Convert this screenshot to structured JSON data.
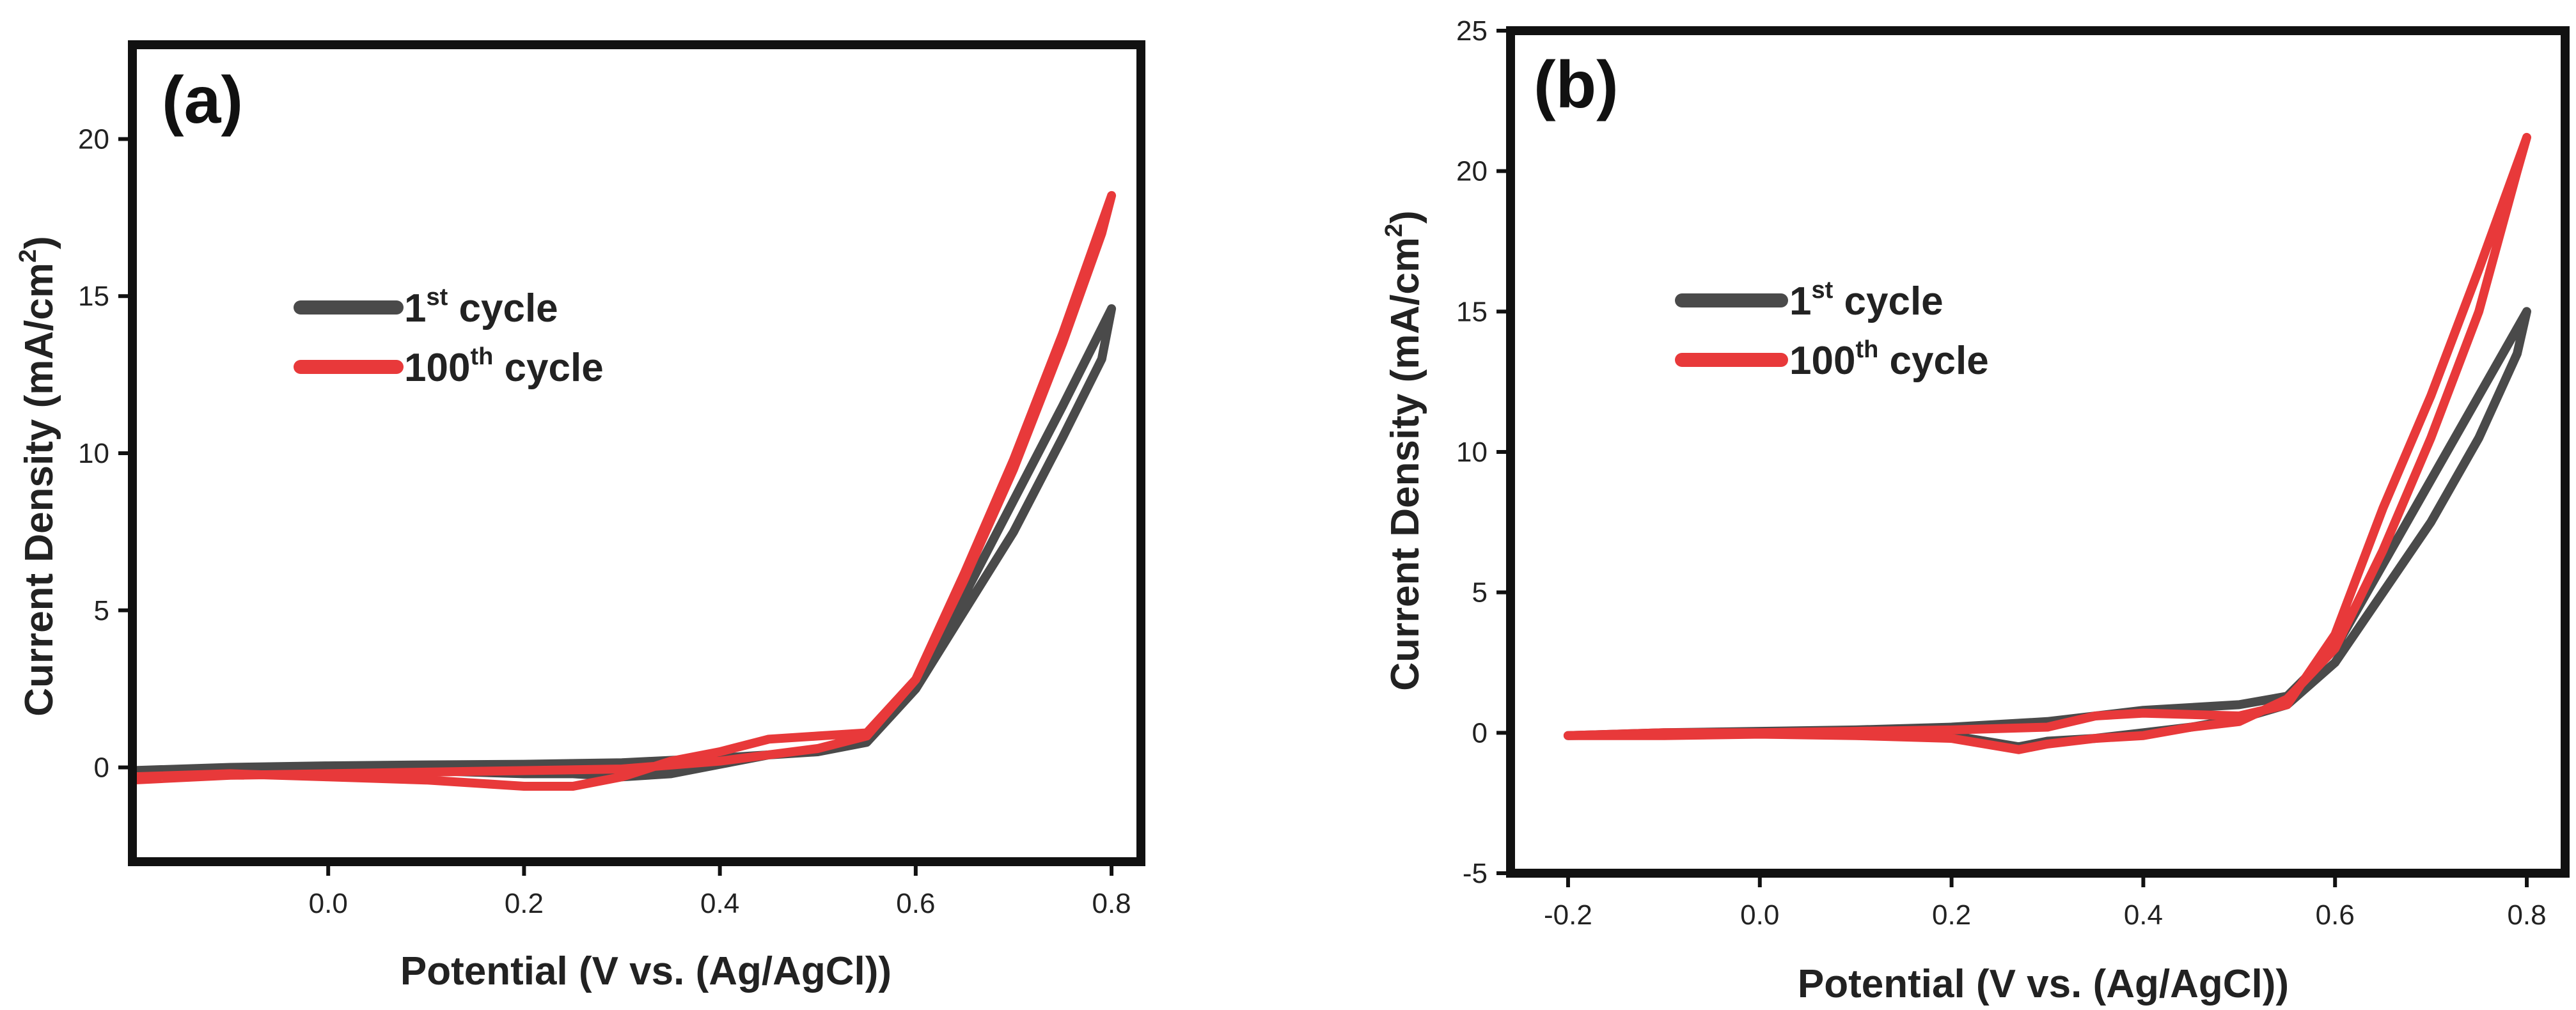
{
  "chart_data": [
    {
      "type": "line",
      "panel_label": "(a)",
      "xlabel": "Potential (V  vs. (Ag/AgCl))",
      "ylabel": "Current  Density (mA/cm",
      "ylabel_sup": "2",
      "ylabel_close": ")",
      "xlim": [
        -0.2,
        0.83
      ],
      "ylim": [
        -3,
        23
      ],
      "xticks": [
        0.0,
        0.2,
        0.4,
        0.6,
        0.8
      ],
      "xtick_labels": [
        "0.0",
        "0.2",
        "0.4",
        "0.6",
        "0.8"
      ],
      "yticks": [
        0,
        5,
        10,
        15,
        20
      ],
      "ytick_labels": [
        "0",
        "5",
        "10",
        "15",
        "20"
      ],
      "legend_position": "upper-left",
      "grid": false,
      "series": [
        {
          "name": "1st cycle",
          "label_main": "1",
          "label_sup": "st",
          "label_rest": " cycle",
          "color": "#4a4a4a",
          "x": [
            -0.2,
            -0.1,
            0.0,
            0.1,
            0.2,
            0.3,
            0.4,
            0.5,
            0.55,
            0.6,
            0.65,
            0.7,
            0.75,
            0.8,
            0.79,
            0.75,
            0.7,
            0.65,
            0.6,
            0.55,
            0.5,
            0.45,
            0.4,
            0.35,
            0.3,
            0.25,
            0.2,
            0.1,
            0.0,
            -0.1,
            -0.2
          ],
          "y": [
            -0.1,
            0.0,
            0.05,
            0.08,
            0.1,
            0.15,
            0.3,
            0.5,
            0.8,
            2.5,
            5.5,
            8.5,
            11.5,
            14.6,
            13.0,
            10.5,
            7.5,
            5.0,
            2.5,
            1.0,
            0.5,
            0.4,
            0.1,
            -0.2,
            -0.3,
            -0.2,
            -0.2,
            -0.1,
            -0.1,
            -0.1,
            -0.1
          ]
        },
        {
          "name": "100th cycle",
          "label_main": "100",
          "label_sup": "th",
          "label_rest": " cycle",
          "color": "#e8393a",
          "x": [
            -0.2,
            -0.1,
            0.0,
            0.1,
            0.2,
            0.3,
            0.4,
            0.5,
            0.55,
            0.6,
            0.65,
            0.7,
            0.75,
            0.8,
            0.79,
            0.75,
            0.7,
            0.65,
            0.6,
            0.55,
            0.5,
            0.45,
            0.4,
            0.35,
            0.3,
            0.25,
            0.2,
            0.1,
            0.0,
            -0.1,
            -0.2
          ],
          "y": [
            -0.4,
            -0.25,
            -0.2,
            -0.15,
            -0.1,
            -0.05,
            0.2,
            0.6,
            1.0,
            2.8,
            6.2,
            9.8,
            13.8,
            18.2,
            17.0,
            13.5,
            9.5,
            6.0,
            2.8,
            1.1,
            1.0,
            0.9,
            0.5,
            0.2,
            -0.3,
            -0.6,
            -0.6,
            -0.4,
            -0.3,
            -0.2,
            -0.3
          ]
        }
      ]
    },
    {
      "type": "line",
      "panel_label": "(b)",
      "xlabel": "Potential (V  vs. (Ag/AgCl))",
      "ylabel": "Current  Density (mA/cm",
      "ylabel_sup": "2",
      "ylabel_close": ")",
      "xlim": [
        -0.26,
        0.84
      ],
      "ylim": [
        -5,
        25
      ],
      "xticks": [
        -0.2,
        0.0,
        0.2,
        0.4,
        0.6,
        0.8
      ],
      "xtick_labels": [
        "-0.2",
        "0.0",
        "0.2",
        "0.4",
        "0.6",
        "0.8"
      ],
      "yticks": [
        -5,
        0,
        5,
        10,
        15,
        20,
        25
      ],
      "ytick_labels": [
        "-5",
        "0",
        "5",
        "10",
        "15",
        "20",
        "25"
      ],
      "legend_position": "upper-left",
      "grid": false,
      "series": [
        {
          "name": "1st  cycle",
          "label_main": "1",
          "label_sup": "st",
          "label_rest": "  cycle",
          "color": "#4a4a4a",
          "x": [
            -0.2,
            -0.1,
            0.0,
            0.1,
            0.2,
            0.3,
            0.4,
            0.5,
            0.55,
            0.6,
            0.65,
            0.7,
            0.75,
            0.8,
            0.79,
            0.75,
            0.7,
            0.65,
            0.6,
            0.55,
            0.5,
            0.45,
            0.4,
            0.35,
            0.3,
            0.27,
            0.2,
            0.1,
            0.0,
            -0.1,
            -0.2
          ],
          "y": [
            -0.1,
            0.0,
            0.05,
            0.1,
            0.2,
            0.4,
            0.8,
            1.0,
            1.3,
            3.0,
            6.0,
            9.0,
            12.0,
            15.0,
            13.5,
            10.5,
            7.5,
            5.0,
            2.5,
            1.0,
            0.5,
            0.2,
            0.0,
            -0.2,
            -0.3,
            -0.5,
            -0.1,
            -0.05,
            0.0,
            -0.05,
            -0.1
          ]
        },
        {
          "name": "100th cycle",
          "label_main": "100",
          "label_sup": "th",
          "label_rest": " cycle",
          "color": "#e8393a",
          "x": [
            -0.2,
            -0.1,
            0.0,
            0.1,
            0.2,
            0.3,
            0.35,
            0.4,
            0.5,
            0.55,
            0.6,
            0.65,
            0.7,
            0.75,
            0.8,
            0.79,
            0.75,
            0.7,
            0.65,
            0.6,
            0.55,
            0.5,
            0.45,
            0.4,
            0.35,
            0.3,
            0.27,
            0.2,
            0.1,
            0.0,
            -0.1,
            -0.2
          ],
          "y": [
            -0.1,
            0.0,
            0.0,
            0.05,
            0.1,
            0.2,
            0.6,
            0.7,
            0.6,
            1.0,
            3.5,
            8.0,
            12.0,
            16.5,
            21.2,
            20.0,
            15.0,
            10.5,
            6.5,
            3.0,
            1.2,
            0.4,
            0.2,
            -0.1,
            -0.2,
            -0.4,
            -0.6,
            -0.2,
            -0.1,
            -0.05,
            -0.1,
            -0.1
          ]
        }
      ]
    }
  ]
}
